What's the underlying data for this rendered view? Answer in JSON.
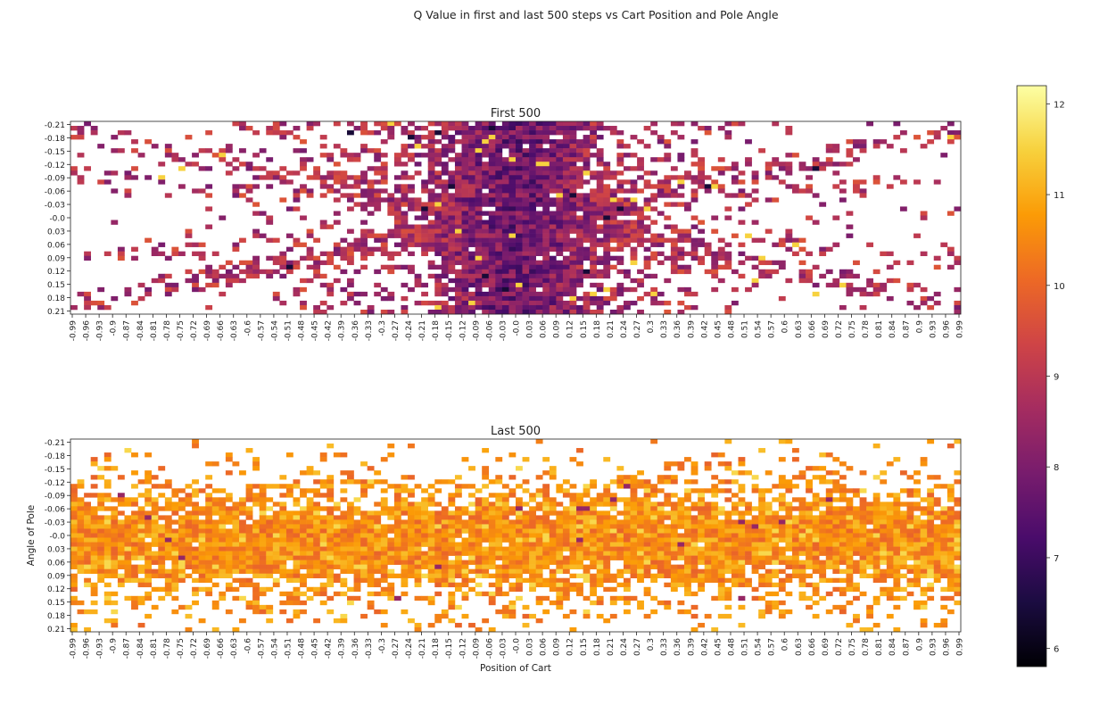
{
  "figure": {
    "suptitle": "Q Value in first and last 500 steps vs Cart Position and Pole Angle"
  },
  "colors": {
    "colormap": "inferno",
    "colormap_stops": [
      "#000004",
      "#1b0c41",
      "#4a0c6b",
      "#781c6d",
      "#a52c60",
      "#cf4446",
      "#ed6925",
      "#fb9b06",
      "#f7d13d",
      "#fcffa4"
    ]
  },
  "chart_data": [
    {
      "type": "heatmap",
      "title": "First 500",
      "xlabel": "",
      "ylabel": "",
      "x_tick_labels": [
        "-0.99",
        "-0.96",
        "-0.93",
        "-0.9",
        "-0.87",
        "-0.84",
        "-0.81",
        "-0.78",
        "-0.75",
        "-0.72",
        "-0.69",
        "-0.66",
        "-0.63",
        "-0.6",
        "-0.57",
        "-0.54",
        "-0.51",
        "-0.48",
        "-0.45",
        "-0.42",
        "-0.39",
        "-0.36",
        "-0.33",
        "-0.3",
        "-0.27",
        "-0.24",
        "-0.21",
        "-0.18",
        "-0.15",
        "-0.12",
        "-0.09",
        "-0.06",
        "-0.03",
        "-0.0",
        "0.03",
        "0.06",
        "0.09",
        "0.12",
        "0.15",
        "0.18",
        "0.21",
        "0.24",
        "0.27",
        "0.3",
        "0.33",
        "0.36",
        "0.39",
        "0.42",
        "0.45",
        "0.48",
        "0.51",
        "0.54",
        "0.57",
        "0.6",
        "0.63",
        "0.66",
        "0.69",
        "0.72",
        "0.75",
        "0.78",
        "0.81",
        "0.84",
        "0.87",
        "0.9",
        "0.93",
        "0.96",
        "0.99"
      ],
      "y_tick_labels": [
        "-0.21",
        "-0.18",
        "-0.15",
        "-0.12",
        "-0.09",
        "-0.06",
        "-0.03",
        "-0.0",
        "0.03",
        "0.06",
        "0.09",
        "0.12",
        "0.15",
        "0.18",
        "0.21"
      ],
      "x_range": [
        -0.99,
        0.99
      ],
      "y_range": [
        -0.21,
        0.21
      ],
      "value_range": [
        5.8,
        12.2
      ],
      "typical_value": 8.8,
      "center_value": 7.8,
      "density": "dense near cart position 0, sparse diagonal streaks toward the edges"
    },
    {
      "type": "heatmap",
      "title": "Last 500",
      "xlabel": "Position of Cart",
      "ylabel": "Angle of Pole",
      "x_tick_labels": [
        "-0.99",
        "-0.96",
        "-0.93",
        "-0.9",
        "-0.87",
        "-0.84",
        "-0.81",
        "-0.78",
        "-0.75",
        "-0.72",
        "-0.69",
        "-0.66",
        "-0.63",
        "-0.6",
        "-0.57",
        "-0.54",
        "-0.51",
        "-0.48",
        "-0.45",
        "-0.42",
        "-0.39",
        "-0.36",
        "-0.33",
        "-0.3",
        "-0.27",
        "-0.24",
        "-0.21",
        "-0.18",
        "-0.15",
        "-0.12",
        "-0.09",
        "-0.06",
        "-0.03",
        "-0.0",
        "0.03",
        "0.06",
        "0.09",
        "0.12",
        "0.15",
        "0.18",
        "0.21",
        "0.24",
        "0.27",
        "0.3",
        "0.33",
        "0.36",
        "0.39",
        "0.42",
        "0.45",
        "0.48",
        "0.51",
        "0.54",
        "0.57",
        "0.6",
        "0.63",
        "0.66",
        "0.69",
        "0.72",
        "0.75",
        "0.78",
        "0.81",
        "0.84",
        "0.87",
        "0.9",
        "0.93",
        "0.96",
        "0.99"
      ],
      "y_tick_labels": [
        "-0.21",
        "-0.18",
        "-0.15",
        "-0.12",
        "-0.09",
        "-0.06",
        "-0.03",
        "-0.0",
        "0.03",
        "0.06",
        "0.09",
        "0.12",
        "0.15",
        "0.18",
        "0.21"
      ],
      "x_range": [
        -0.99,
        0.99
      ],
      "y_range": [
        -0.21,
        0.21
      ],
      "value_range": [
        5.8,
        12.2
      ],
      "typical_value": 10.6,
      "density": "dense horizontal band around pole angle 0 across all cart positions"
    }
  ],
  "colorbar": {
    "ticks": [
      "6",
      "7",
      "8",
      "9",
      "10",
      "11",
      "12"
    ],
    "tick_values": [
      6,
      7,
      8,
      9,
      10,
      11,
      12
    ],
    "range": [
      5.8,
      12.2
    ]
  }
}
